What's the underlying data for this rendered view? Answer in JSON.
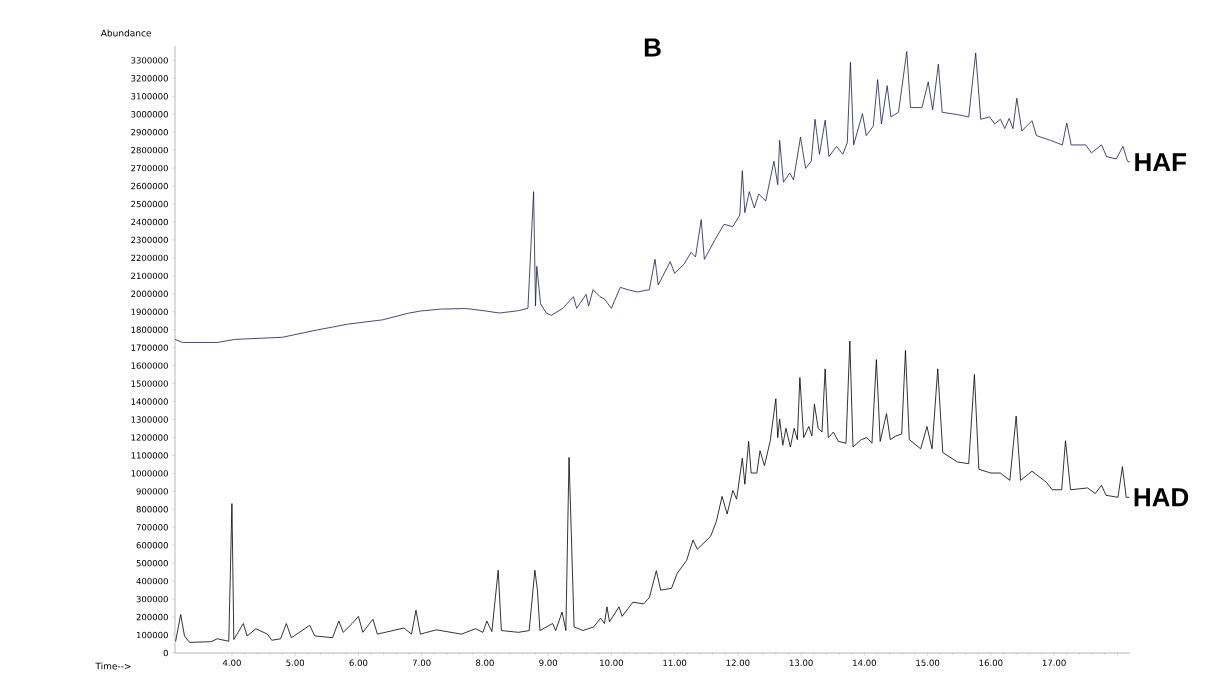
{
  "chart_data": {
    "type": "line",
    "title": "B",
    "xlabel": "Time-->",
    "ylabel": "Abundance",
    "xlim": [
      3.1,
      18.2
    ],
    "ylim": [
      0,
      3380000
    ],
    "xticks": [
      {
        "value": 4,
        "label": "4.00"
      },
      {
        "value": 5,
        "label": "5.00"
      },
      {
        "value": 6,
        "label": "6.00"
      },
      {
        "value": 7,
        "label": "7.00"
      },
      {
        "value": 8,
        "label": "8.00"
      },
      {
        "value": 9,
        "label": "9.00"
      },
      {
        "value": 10,
        "label": "10.00"
      },
      {
        "value": 11,
        "label": "11.00"
      },
      {
        "value": 12,
        "label": "12.00"
      },
      {
        "value": 13,
        "label": "13.00"
      },
      {
        "value": 14,
        "label": "14.00"
      },
      {
        "value": 15,
        "label": "15.00"
      },
      {
        "value": 16,
        "label": "16.00"
      },
      {
        "value": 17,
        "label": "17.00"
      },
      {
        "value": 18,
        "label": null
      }
    ],
    "yticks": [
      0,
      100000,
      200000,
      300000,
      400000,
      500000,
      600000,
      700000,
      800000,
      900000,
      1000000,
      1100000,
      1200000,
      1300000,
      1400000,
      1500000,
      1600000,
      1700000,
      1800000,
      1900000,
      2000000,
      2100000,
      2200000,
      2300000,
      2400000,
      2500000,
      2600000,
      2700000,
      2800000,
      2900000,
      3000000,
      3100000,
      3200000,
      3300000
    ],
    "grid": false,
    "legend": false,
    "marker": "none",
    "line_style": "solid",
    "series": [
      {
        "name": "HAF",
        "color": "#1c1c4c",
        "x": [
          3.1,
          3.22,
          3.77,
          4.04,
          4.8,
          5.28,
          5.83,
          6.38,
          6.79,
          6.98,
          7.3,
          7.7,
          8.0,
          8.23,
          8.53,
          8.68,
          8.77,
          8.8,
          8.82,
          8.88,
          8.97,
          9.05,
          9.23,
          9.4,
          9.45,
          9.6,
          9.64,
          9.71,
          9.82,
          9.89,
          10.0,
          10.14,
          10.26,
          10.41,
          10.6,
          10.69,
          10.74,
          10.93,
          11.0,
          11.15,
          11.26,
          11.33,
          11.42,
          11.47,
          11.63,
          11.78,
          11.92,
          12.03,
          12.07,
          12.11,
          12.18,
          12.26,
          12.33,
          12.44,
          12.57,
          12.63,
          12.66,
          12.72,
          12.82,
          12.88,
          12.99,
          13.07,
          13.16,
          13.22,
          13.29,
          13.38,
          13.44,
          13.56,
          13.66,
          13.73,
          13.78,
          13.83,
          13.97,
          14.03,
          14.14,
          14.21,
          14.27,
          14.36,
          14.42,
          14.54,
          14.67,
          14.73,
          14.91,
          15.01,
          15.08,
          15.17,
          15.23,
          15.47,
          15.65,
          15.76,
          15.84,
          15.98,
          16.06,
          16.15,
          16.22,
          16.29,
          16.35,
          16.41,
          16.49,
          16.65,
          16.72,
          16.94,
          17.13,
          17.2,
          17.27,
          17.5,
          17.59,
          17.75,
          17.83,
          17.98,
          18.09,
          18.16,
          18.2
        ],
        "values": [
          1746000,
          1729000,
          1729000,
          1746000,
          1758000,
          1794000,
          1831000,
          1855000,
          1892000,
          1904000,
          1915000,
          1918000,
          1905000,
          1893000,
          1906000,
          1919000,
          2569000,
          1932000,
          2153000,
          1945000,
          1893000,
          1880000,
          1919000,
          1984000,
          1919000,
          1997000,
          1932000,
          2023000,
          1984000,
          1971000,
          1919000,
          2036000,
          2023000,
          2010000,
          2023000,
          2192000,
          2049000,
          2179000,
          2114000,
          2166000,
          2231000,
          2205000,
          2413000,
          2192000,
          2296000,
          2387000,
          2374000,
          2439000,
          2686000,
          2452000,
          2569000,
          2478000,
          2556000,
          2517000,
          2738000,
          2608000,
          2855000,
          2621000,
          2673000,
          2634000,
          2873000,
          2699000,
          2738000,
          2972000,
          2777000,
          2967000,
          2764000,
          2821000,
          2777000,
          2842000,
          3289000,
          2829000,
          3003000,
          2881000,
          2933000,
          3193000,
          2946000,
          3159000,
          2985000,
          3011000,
          3349000,
          3037000,
          3037000,
          3180000,
          3024000,
          3279000,
          3011000,
          2998000,
          2985000,
          3341000,
          2972000,
          2985000,
          2946000,
          2972000,
          2920000,
          2977000,
          2920000,
          3089000,
          2907000,
          2964000,
          2881000,
          2855000,
          2829000,
          2951000,
          2829000,
          2829000,
          2785000,
          2829000,
          2764000,
          2751000,
          2821000,
          2738000,
          2733000
        ]
      },
      {
        "name": "HAD",
        "color": "#000000",
        "x": [
          3.11,
          3.19,
          3.25,
          3.33,
          3.67,
          3.77,
          3.95,
          4.0,
          4.03,
          4.18,
          4.24,
          4.38,
          4.56,
          4.63,
          4.77,
          4.86,
          4.94,
          5.23,
          5.31,
          5.59,
          5.69,
          5.76,
          5.9,
          6.0,
          6.07,
          6.23,
          6.3,
          6.72,
          6.84,
          6.91,
          6.98,
          7.23,
          7.63,
          7.85,
          7.97,
          8.03,
          8.11,
          8.21,
          8.26,
          8.53,
          8.7,
          8.79,
          8.83,
          8.87,
          9.07,
          9.12,
          9.22,
          9.28,
          9.33,
          9.41,
          9.55,
          9.72,
          9.83,
          9.89,
          9.93,
          9.97,
          10.12,
          10.17,
          10.34,
          10.51,
          10.6,
          10.71,
          10.78,
          10.95,
          11.04,
          11.19,
          11.29,
          11.36,
          11.57,
          11.66,
          11.75,
          11.83,
          11.92,
          11.98,
          12.07,
          12.11,
          12.17,
          12.21,
          12.3,
          12.35,
          12.42,
          12.51,
          12.6,
          12.63,
          12.66,
          12.71,
          12.76,
          12.83,
          12.89,
          12.94,
          12.98,
          13.04,
          13.12,
          13.17,
          13.21,
          13.27,
          13.33,
          13.38,
          13.43,
          13.51,
          13.59,
          13.71,
          13.77,
          13.82,
          13.95,
          14.04,
          14.12,
          14.19,
          14.25,
          14.35,
          14.41,
          14.5,
          14.59,
          14.65,
          14.71,
          14.89,
          14.99,
          15.07,
          15.16,
          15.24,
          15.47,
          15.65,
          15.74,
          15.81,
          16.0,
          16.15,
          16.3,
          16.4,
          16.47,
          16.65,
          16.88,
          16.97,
          17.12,
          17.18,
          17.26,
          17.53,
          17.65,
          17.75,
          17.82,
          18.01,
          18.08,
          18.14,
          18.19
        ],
        "values": [
          65000,
          214000,
          95000,
          59000,
          63000,
          79000,
          65000,
          832000,
          75000,
          164000,
          95000,
          135000,
          105000,
          71000,
          79000,
          164000,
          85000,
          154000,
          95000,
          85000,
          178000,
          115000,
          164000,
          204000,
          115000,
          188000,
          105000,
          139000,
          105000,
          238000,
          105000,
          129000,
          105000,
          135000,
          115000,
          178000,
          119000,
          461000,
          125000,
          115000,
          125000,
          461000,
          352000,
          125000,
          164000,
          125000,
          228000,
          125000,
          1089000,
          145000,
          125000,
          145000,
          194000,
          164000,
          257000,
          174000,
          257000,
          204000,
          283000,
          273000,
          308000,
          458000,
          350000,
          360000,
          443000,
          516000,
          629000,
          578000,
          650000,
          733000,
          872000,
          774000,
          905000,
          857000,
          1085000,
          940000,
          1178000,
          1002000,
          1002000,
          1126000,
          1043000,
          1178000,
          1416000,
          1199000,
          1302000,
          1157000,
          1251000,
          1147000,
          1251000,
          1188000,
          1534000,
          1199000,
          1261000,
          1209000,
          1385000,
          1251000,
          1230000,
          1582000,
          1199000,
          1230000,
          1178000,
          1168000,
          1737000,
          1147000,
          1188000,
          1199000,
          1168000,
          1634000,
          1178000,
          1333000,
          1188000,
          1209000,
          1219000,
          1685000,
          1188000,
          1137000,
          1261000,
          1137000,
          1582000,
          1116000,
          1064000,
          1054000,
          1551000,
          1023000,
          1002000,
          1002000,
          961000,
          1319000,
          961000,
          1012000,
          950000,
          909000,
          909000,
          1182000,
          909000,
          919000,
          888000,
          934000,
          878000,
          867000,
          1037000,
          867000,
          867000
        ]
      }
    ]
  }
}
